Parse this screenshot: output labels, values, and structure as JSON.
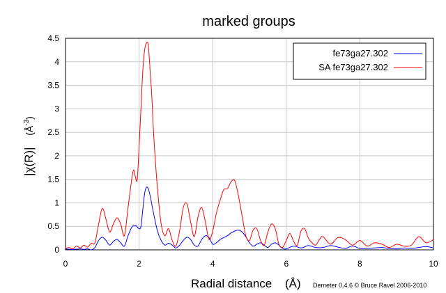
{
  "chart_data": {
    "type": "line",
    "title": "marked groups",
    "xlabel": "Radial distance",
    "xlabel_unit": "(Å)",
    "ylabel": "|χ(R)|",
    "ylabel_unit_base": "(Å",
    "ylabel_unit_exp": "-3",
    "ylabel_unit_close": ")",
    "xlim": [
      0,
      10
    ],
    "ylim": [
      0,
      4.5
    ],
    "xticks": [
      "0",
      "2",
      "4",
      "6",
      "8",
      "10"
    ],
    "yticks": [
      "0",
      "0.5",
      "1",
      "1.5",
      "2",
      "2.5",
      "3",
      "3.5",
      "4",
      "4.5"
    ],
    "grid": true,
    "legend_position": "top-right",
    "series": [
      {
        "name": "fe73ga27.302",
        "color": "#0000ff",
        "x": [
          0,
          0.2,
          0.4,
          0.5,
          0.6,
          0.7,
          0.8,
          0.9,
          1.0,
          1.1,
          1.2,
          1.3,
          1.4,
          1.5,
          1.6,
          1.7,
          1.8,
          1.9,
          2.0,
          2.05,
          2.1,
          2.15,
          2.2,
          2.25,
          2.3,
          2.4,
          2.5,
          2.6,
          2.7,
          2.8,
          2.9,
          3.0,
          3.1,
          3.2,
          3.3,
          3.4,
          3.5,
          3.6,
          3.7,
          3.8,
          3.9,
          4.0,
          4.1,
          4.2,
          4.3,
          4.4,
          4.5,
          4.6,
          4.7,
          4.8,
          4.9,
          5.0,
          5.1,
          5.2,
          5.3,
          5.4,
          5.5,
          5.6,
          5.7,
          5.8,
          5.9,
          6.0,
          6.2,
          6.4,
          6.6,
          6.8,
          7.0,
          7.2,
          7.4,
          7.6,
          7.8,
          8.0,
          8.2,
          8.4,
          8.6,
          8.8,
          9.0,
          9.2,
          9.4,
          9.6,
          9.8,
          10.0
        ],
        "y": [
          0.02,
          0.01,
          0.02,
          0.01,
          0.02,
          0.0,
          0.05,
          0.2,
          0.27,
          0.2,
          0.1,
          0.18,
          0.22,
          0.15,
          0.08,
          0.3,
          0.48,
          0.52,
          0.45,
          0.5,
          0.85,
          1.2,
          1.33,
          1.3,
          1.15,
          0.75,
          0.4,
          0.2,
          0.1,
          0.14,
          0.1,
          0.04,
          0.1,
          0.2,
          0.27,
          0.22,
          0.1,
          0.08,
          0.22,
          0.3,
          0.26,
          0.12,
          0.15,
          0.22,
          0.26,
          0.3,
          0.36,
          0.4,
          0.42,
          0.38,
          0.28,
          0.15,
          0.08,
          0.12,
          0.15,
          0.1,
          0.05,
          0.12,
          0.15,
          0.1,
          0.03,
          0.02,
          0.08,
          0.04,
          0.09,
          0.05,
          0.05,
          0.09,
          0.06,
          0.03,
          0.08,
          0.03,
          0.03,
          0.04,
          0.05,
          0.03,
          0.02,
          0.04,
          0.03,
          0.05,
          0.07,
          0.04
        ]
      },
      {
        "name": "SA  fe73ga27.302",
        "color": "#ff0000",
        "x": [
          0,
          0.1,
          0.2,
          0.3,
          0.4,
          0.5,
          0.6,
          0.7,
          0.8,
          0.9,
          1.0,
          1.1,
          1.2,
          1.3,
          1.4,
          1.5,
          1.6,
          1.7,
          1.8,
          1.85,
          1.9,
          1.95,
          2.0,
          2.05,
          2.1,
          2.15,
          2.2,
          2.25,
          2.3,
          2.35,
          2.4,
          2.5,
          2.6,
          2.7,
          2.8,
          2.9,
          3.0,
          3.1,
          3.2,
          3.3,
          3.4,
          3.5,
          3.6,
          3.7,
          3.8,
          3.9,
          4.0,
          4.1,
          4.2,
          4.3,
          4.4,
          4.5,
          4.6,
          4.7,
          4.8,
          4.9,
          5.0,
          5.1,
          5.2,
          5.3,
          5.4,
          5.5,
          5.6,
          5.7,
          5.8,
          5.9,
          6.0,
          6.1,
          6.2,
          6.3,
          6.4,
          6.5,
          6.6,
          6.7,
          6.8,
          6.9,
          7.0,
          7.2,
          7.4,
          7.6,
          7.8,
          8.0,
          8.2,
          8.4,
          8.6,
          8.8,
          9.0,
          9.2,
          9.4,
          9.6,
          9.8,
          10.0
        ],
        "y": [
          0.03,
          0.05,
          0.02,
          0.08,
          0.04,
          0.1,
          0.06,
          0.14,
          0.15,
          0.55,
          0.88,
          0.65,
          0.38,
          0.55,
          0.68,
          0.55,
          0.3,
          0.9,
          1.5,
          1.7,
          1.55,
          1.5,
          2.2,
          3.0,
          3.8,
          4.25,
          4.4,
          4.35,
          3.8,
          3.2,
          2.4,
          1.3,
          0.55,
          0.3,
          0.45,
          0.2,
          0.08,
          0.4,
          0.9,
          0.98,
          0.6,
          0.28,
          0.7,
          0.9,
          0.6,
          0.22,
          0.4,
          0.78,
          1.05,
          1.28,
          1.3,
          1.45,
          1.47,
          1.15,
          0.72,
          0.3,
          0.2,
          0.42,
          0.45,
          0.2,
          0.1,
          0.38,
          0.55,
          0.45,
          0.12,
          0.05,
          0.2,
          0.35,
          0.18,
          0.1,
          0.4,
          0.45,
          0.25,
          0.15,
          0.1,
          0.22,
          0.28,
          0.12,
          0.26,
          0.22,
          0.1,
          0.2,
          0.08,
          0.15,
          0.12,
          0.05,
          0.12,
          0.08,
          0.1,
          0.28,
          0.15,
          0.22
        ]
      }
    ],
    "credit": "Demeter 0.4.6 © Bruce Ravel 2006-2010"
  }
}
